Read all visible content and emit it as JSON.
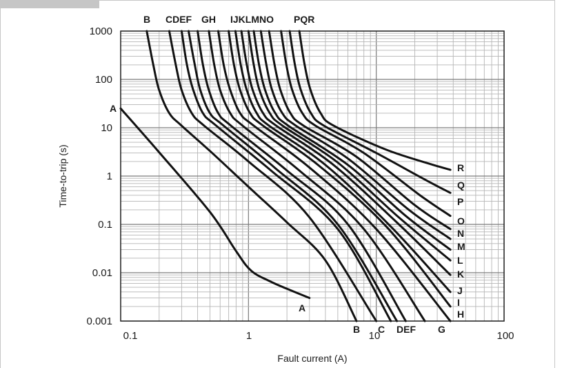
{
  "chart_data": {
    "type": "line",
    "xlabel": "Fault current (A)",
    "ylabel": "Time-to-trip (s)",
    "x_scale": "log",
    "y_scale": "log",
    "xlim": [
      0.1,
      100
    ],
    "ylim": [
      0.001,
      1000
    ],
    "grid": true,
    "x_ticks": [
      {
        "value": 0.1,
        "label": "0.1"
      },
      {
        "value": 1,
        "label": "1"
      },
      {
        "value": 10,
        "label": "10"
      },
      {
        "value": 100,
        "label": "100"
      }
    ],
    "y_ticks": [
      {
        "value": 1000,
        "label": "1000"
      },
      {
        "value": 100,
        "label": "100"
      },
      {
        "value": 10,
        "label": "10"
      },
      {
        "value": 1,
        "label": "1"
      },
      {
        "value": 0.1,
        "label": "0.1"
      },
      {
        "value": 0.01,
        "label": "0.01"
      },
      {
        "value": 0.001,
        "label": "0.001"
      }
    ],
    "series": [
      {
        "name": "A",
        "points": [
          [
            0.1,
            25
          ],
          [
            0.2,
            3.1
          ],
          [
            0.5,
            0.18
          ],
          [
            0.8,
            0.028
          ],
          [
            1.05,
            0.011
          ],
          [
            1.5,
            0.0065
          ],
          [
            2.2,
            0.0042
          ],
          [
            3,
            0.003
          ]
        ]
      },
      {
        "name": "B",
        "points": [
          [
            0.16,
            1000
          ],
          [
            0.18,
            200
          ],
          [
            0.2,
            60
          ],
          [
            0.24,
            20
          ],
          [
            0.3,
            11
          ],
          [
            0.5,
            3.3
          ],
          [
            1,
            0.6
          ],
          [
            2,
            0.11
          ],
          [
            4,
            0.018
          ],
          [
            7,
            0.001
          ]
        ]
      },
      {
        "name": "C",
        "points": [
          [
            0.24,
            1000
          ],
          [
            0.27,
            200
          ],
          [
            0.3,
            60
          ],
          [
            0.36,
            20
          ],
          [
            0.45,
            11
          ],
          [
            1,
            2
          ],
          [
            3,
            0.14
          ],
          [
            10,
            0.001
          ]
        ]
      },
      {
        "name": "D",
        "points": [
          [
            0.3,
            1000
          ],
          [
            0.33,
            200
          ],
          [
            0.37,
            60
          ],
          [
            0.44,
            20
          ],
          [
            0.56,
            11
          ],
          [
            1.5,
            1.3
          ],
          [
            5,
            0.08
          ],
          [
            13,
            0.001
          ]
        ]
      },
      {
        "name": "E",
        "points": [
          [
            0.34,
            1000
          ],
          [
            0.38,
            200
          ],
          [
            0.42,
            60
          ],
          [
            0.5,
            20
          ],
          [
            0.64,
            11
          ],
          [
            1.6,
            1.5
          ],
          [
            5,
            0.1
          ],
          [
            14.5,
            0.001
          ]
        ]
      },
      {
        "name": "F",
        "points": [
          [
            0.4,
            1000
          ],
          [
            0.44,
            200
          ],
          [
            0.49,
            60
          ],
          [
            0.58,
            20
          ],
          [
            0.73,
            11
          ],
          [
            2,
            1.3
          ],
          [
            6,
            0.1
          ],
          [
            17,
            0.001
          ]
        ]
      },
      {
        "name": "G",
        "points": [
          [
            0.49,
            1000
          ],
          [
            0.54,
            200
          ],
          [
            0.6,
            60
          ],
          [
            0.72,
            20
          ],
          [
            0.9,
            11
          ],
          [
            2.5,
            1.3
          ],
          [
            8,
            0.08
          ],
          [
            24,
            0.001
          ]
        ]
      },
      {
        "name": "H",
        "points": [
          [
            0.58,
            1000
          ],
          [
            0.64,
            200
          ],
          [
            0.72,
            60
          ],
          [
            0.86,
            20
          ],
          [
            1.1,
            11
          ],
          [
            3,
            1.5
          ],
          [
            10,
            0.08
          ],
          [
            38,
            0.001
          ]
        ]
      },
      {
        "name": "I",
        "points": [
          [
            0.7,
            1000
          ],
          [
            0.77,
            200
          ],
          [
            0.86,
            60
          ],
          [
            1.03,
            20
          ],
          [
            1.3,
            11
          ],
          [
            3.5,
            1.7
          ],
          [
            12,
            0.09
          ],
          [
            38,
            0.002
          ]
        ]
      },
      {
        "name": "J",
        "points": [
          [
            0.79,
            1000
          ],
          [
            0.87,
            200
          ],
          [
            0.97,
            60
          ],
          [
            1.16,
            20
          ],
          [
            1.45,
            11
          ],
          [
            4,
            1.7
          ],
          [
            13,
            0.09
          ],
          [
            38,
            0.004
          ]
        ]
      },
      {
        "name": "K",
        "points": [
          [
            0.88,
            1000
          ],
          [
            0.97,
            200
          ],
          [
            1.08,
            60
          ],
          [
            1.3,
            20
          ],
          [
            1.65,
            11
          ],
          [
            4.5,
            1.8
          ],
          [
            14,
            0.12
          ],
          [
            38,
            0.009
          ]
        ]
      },
      {
        "name": "L",
        "points": [
          [
            1.0,
            1000
          ],
          [
            1.1,
            200
          ],
          [
            1.22,
            60
          ],
          [
            1.47,
            20
          ],
          [
            1.85,
            11
          ],
          [
            5,
            1.9
          ],
          [
            15,
            0.14
          ],
          [
            38,
            0.018
          ]
        ]
      },
      {
        "name": "M",
        "points": [
          [
            1.1,
            1000
          ],
          [
            1.21,
            200
          ],
          [
            1.35,
            60
          ],
          [
            1.62,
            20
          ],
          [
            2.05,
            11
          ],
          [
            6,
            1.7
          ],
          [
            17,
            0.15
          ],
          [
            38,
            0.03
          ]
        ]
      },
      {
        "name": "N",
        "points": [
          [
            1.25,
            1000
          ],
          [
            1.38,
            200
          ],
          [
            1.53,
            60
          ],
          [
            1.84,
            20
          ],
          [
            2.35,
            11
          ],
          [
            6,
            2.3
          ],
          [
            18,
            0.2
          ],
          [
            38,
            0.05
          ]
        ]
      },
      {
        "name": "O",
        "points": [
          [
            1.45,
            1000
          ],
          [
            1.6,
            200
          ],
          [
            1.78,
            60
          ],
          [
            2.13,
            20
          ],
          [
            2.7,
            11
          ],
          [
            7,
            2.5
          ],
          [
            20,
            0.25
          ],
          [
            38,
            0.08
          ]
        ]
      },
      {
        "name": "P",
        "points": [
          [
            1.8,
            1000
          ],
          [
            1.98,
            200
          ],
          [
            2.2,
            60
          ],
          [
            2.64,
            20
          ],
          [
            3.35,
            11
          ],
          [
            8,
            3
          ],
          [
            22,
            0.4
          ],
          [
            38,
            0.15
          ]
        ]
      },
      {
        "name": "Q",
        "points": [
          [
            2.1,
            1000
          ],
          [
            2.31,
            200
          ],
          [
            2.57,
            60
          ],
          [
            3.08,
            20
          ],
          [
            3.9,
            11
          ],
          [
            10,
            3
          ],
          [
            25,
            0.8
          ],
          [
            38,
            0.45
          ]
        ]
      },
      {
        "name": "R",
        "points": [
          [
            2.5,
            1000
          ],
          [
            2.75,
            200
          ],
          [
            3.06,
            60
          ],
          [
            3.67,
            20
          ],
          [
            4.65,
            11
          ],
          [
            12,
            3.5
          ],
          [
            28,
            1.7
          ],
          [
            38,
            1.35
          ]
        ]
      }
    ],
    "curve_labels": {
      "top": [
        "B",
        "CDEF",
        "GH",
        "IJKLMNO",
        "PQR"
      ],
      "right": [
        "R",
        "Q",
        "P",
        "O",
        "N",
        "M",
        "L",
        "K",
        "J",
        "I",
        "H"
      ],
      "bottom": [
        "B",
        "C",
        "DEF",
        "G"
      ],
      "left": [
        "A"
      ],
      "inner": [
        "A"
      ]
    }
  }
}
